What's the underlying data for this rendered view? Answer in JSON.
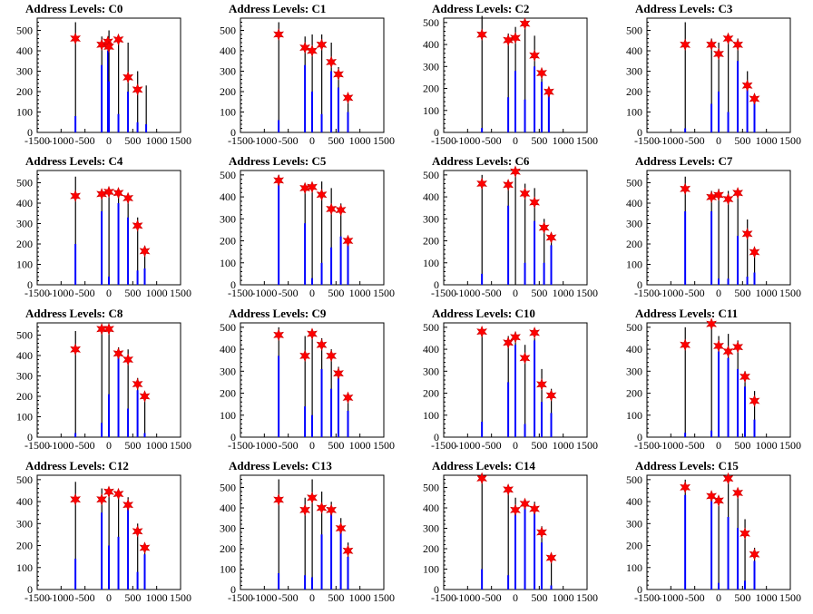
{
  "chart_data": [
    {
      "type": "histogram",
      "title": "Address Levels: C0",
      "xlim": [
        -1500,
        1500
      ],
      "ylim": [
        0,
        560
      ],
      "xticks": [
        "-1500",
        "-1000",
        "-500",
        "0",
        "500",
        "1000",
        "1500"
      ],
      "yticks": [
        "0",
        "100",
        "200",
        "300",
        "400",
        "500"
      ],
      "x": [
        -700,
        -150,
        -20,
        0,
        200,
        400,
        600,
        780
      ],
      "black": [
        540,
        470,
        470,
        500,
        440,
        440,
        300,
        230
      ],
      "blue": [
        80,
        330,
        400,
        250,
        90,
        200,
        50,
        40
      ],
      "markers": [
        460,
        430,
        445,
        420,
        455,
        270,
        210,
        0
      ]
    },
    {
      "type": "histogram",
      "title": "Address Levels: C1",
      "xlim": [
        -1500,
        1500
      ],
      "ylim": [
        0,
        560
      ],
      "xticks": [
        "-1500",
        "-1000",
        "-500",
        "0",
        "500",
        "1000",
        "1500"
      ],
      "yticks": [
        "0",
        "100",
        "200",
        "300",
        "400",
        "500"
      ],
      "x": [
        -700,
        -150,
        0,
        200,
        400,
        550,
        750
      ],
      "black": [
        540,
        470,
        480,
        480,
        440,
        320,
        150
      ],
      "blue": [
        60,
        330,
        200,
        90,
        300,
        220,
        100
      ],
      "markers": [
        480,
        415,
        400,
        430,
        345,
        285,
        170
      ]
    },
    {
      "type": "histogram",
      "title": "Address Levels: C2",
      "xlim": [
        -1500,
        1500
      ],
      "ylim": [
        0,
        520
      ],
      "xticks": [
        "-1500",
        "-1000",
        "-500",
        "0",
        "500",
        "1000",
        "1500"
      ],
      "yticks": [
        "0",
        "100",
        "200",
        "300",
        "400",
        "500"
      ],
      "x": [
        -700,
        -150,
        0,
        200,
        400,
        550,
        700
      ],
      "black": [
        530,
        450,
        480,
        490,
        440,
        290,
        200
      ],
      "blue": [
        20,
        160,
        280,
        150,
        300,
        230,
        170
      ],
      "markers": [
        445,
        420,
        430,
        495,
        350,
        270,
        185
      ]
    },
    {
      "type": "histogram",
      "title": "Address Levels: C3",
      "xlim": [
        -1500,
        1500
      ],
      "ylim": [
        0,
        560
      ],
      "xticks": [
        "-1500",
        "-1000",
        "-500",
        "0",
        "500",
        "1000",
        "1500"
      ],
      "yticks": [
        "0",
        "100",
        "200",
        "300",
        "400",
        "500"
      ],
      "x": [
        -700,
        -150,
        0,
        200,
        400,
        600,
        750
      ],
      "black": [
        540,
        460,
        440,
        480,
        460,
        300,
        180
      ],
      "blue": [
        20,
        140,
        200,
        100,
        350,
        210,
        160
      ],
      "markers": [
        430,
        430,
        385,
        460,
        430,
        230,
        165
      ]
    },
    {
      "type": "histogram",
      "title": "Address Levels: C4",
      "xlim": [
        -1500,
        1500
      ],
      "ylim": [
        0,
        560
      ],
      "xticks": [
        "-1500",
        "-1000",
        "-500",
        "0",
        "500",
        "1000",
        "1500"
      ],
      "yticks": [
        "0",
        "100",
        "200",
        "300",
        "400",
        "500"
      ],
      "x": [
        -700,
        -150,
        0,
        200,
        400,
        600,
        750
      ],
      "black": [
        530,
        460,
        470,
        460,
        440,
        330,
        190
      ],
      "blue": [
        200,
        360,
        40,
        400,
        330,
        70,
        80
      ],
      "markers": [
        435,
        445,
        455,
        450,
        425,
        290,
        165
      ]
    },
    {
      "type": "histogram",
      "title": "Address Levels: C5",
      "xlim": [
        -1500,
        1500
      ],
      "ylim": [
        0,
        520
      ],
      "xticks": [
        "-1500",
        "-1000",
        "-500",
        "0",
        "500",
        "1000",
        "1500"
      ],
      "yticks": [
        "0",
        "100",
        "200",
        "300",
        "400",
        "500"
      ],
      "x": [
        -700,
        -150,
        0,
        200,
        400,
        600,
        750
      ],
      "black": [
        500,
        460,
        460,
        470,
        440,
        370,
        210
      ],
      "blue": [
        460,
        280,
        30,
        100,
        170,
        220,
        190
      ],
      "markers": [
        475,
        440,
        445,
        410,
        345,
        340,
        200
      ]
    },
    {
      "type": "histogram",
      "title": "Address Levels: C6",
      "xlim": [
        -1500,
        1500
      ],
      "ylim": [
        0,
        520
      ],
      "xticks": [
        "-1500",
        "-1000",
        "-500",
        "0",
        "500",
        "1000",
        "1500"
      ],
      "yticks": [
        "0",
        "100",
        "200",
        "300",
        "400",
        "500"
      ],
      "x": [
        -700,
        -150,
        0,
        200,
        400,
        600,
        750
      ],
      "black": [
        500,
        460,
        510,
        460,
        440,
        300,
        200
      ],
      "blue": [
        50,
        360,
        0,
        100,
        290,
        100,
        180
      ],
      "markers": [
        460,
        455,
        515,
        415,
        375,
        260,
        215
      ]
    },
    {
      "type": "histogram",
      "title": "Address Levels: C7",
      "xlim": [
        -1500,
        1500
      ],
      "ylim": [
        0,
        560
      ],
      "xticks": [
        "-1500",
        "-1000",
        "-500",
        "0",
        "500",
        "1000",
        "1500"
      ],
      "yticks": [
        "0",
        "100",
        "200",
        "300",
        "400",
        "500"
      ],
      "x": [
        -700,
        -150,
        0,
        200,
        400,
        600,
        750
      ],
      "black": [
        530,
        460,
        470,
        460,
        460,
        320,
        160
      ],
      "blue": [
        360,
        360,
        30,
        30,
        240,
        40,
        60
      ],
      "markers": [
        470,
        430,
        440,
        420,
        450,
        250,
        160
      ]
    },
    {
      "type": "histogram",
      "title": "Address Levels: C8",
      "xlim": [
        -1500,
        1500
      ],
      "ylim": [
        0,
        560
      ],
      "xticks": [
        "-1500",
        "-1000",
        "-500",
        "0",
        "500",
        "1000",
        "1500"
      ],
      "yticks": [
        "0",
        "100",
        "200",
        "300",
        "400",
        "500"
      ],
      "x": [
        -700,
        -150,
        0,
        200,
        400,
        600,
        750
      ],
      "black": [
        520,
        520,
        530,
        440,
        430,
        290,
        200
      ],
      "blue": [
        20,
        70,
        210,
        400,
        140,
        230,
        20
      ],
      "markers": [
        430,
        530,
        530,
        410,
        380,
        260,
        200
      ]
    },
    {
      "type": "histogram",
      "title": "Address Levels: C9",
      "xlim": [
        -1500,
        1500
      ],
      "ylim": [
        0,
        520
      ],
      "xticks": [
        "-1500",
        "-1000",
        "-500",
        "0",
        "500",
        "1000",
        "1500"
      ],
      "yticks": [
        "0",
        "100",
        "200",
        "300",
        "400",
        "500"
      ],
      "x": [
        -700,
        -150,
        0,
        200,
        400,
        550,
        750
      ],
      "black": [
        500,
        460,
        490,
        450,
        400,
        320,
        180
      ],
      "blue": [
        370,
        140,
        100,
        310,
        220,
        270,
        120
      ],
      "markers": [
        465,
        370,
        470,
        420,
        370,
        290,
        180
      ]
    },
    {
      "type": "histogram",
      "title": "Address Levels: C10",
      "xlim": [
        -1500,
        1500
      ],
      "ylim": [
        0,
        520
      ],
      "xticks": [
        "-1500",
        "-1000",
        "-500",
        "0",
        "500",
        "1000",
        "1500"
      ],
      "yticks": [
        "0",
        "100",
        "200",
        "300",
        "400",
        "500"
      ],
      "x": [
        -700,
        -150,
        0,
        200,
        400,
        550,
        750
      ],
      "black": [
        500,
        460,
        480,
        420,
        450,
        310,
        220
      ],
      "blue": [
        70,
        250,
        420,
        60,
        440,
        160,
        110
      ],
      "markers": [
        480,
        430,
        455,
        360,
        475,
        240,
        190
      ]
    },
    {
      "type": "histogram",
      "title": "Address Levels: C11",
      "xlim": [
        -1500,
        1500
      ],
      "ylim": [
        0,
        520
      ],
      "xticks": [
        "-1500",
        "-1000",
        "-500",
        "0",
        "500",
        "1000",
        "1500"
      ],
      "yticks": [
        "0",
        "100",
        "200",
        "300",
        "400",
        "500"
      ],
      "x": [
        -700,
        -150,
        0,
        200,
        400,
        550,
        750
      ],
      "black": [
        500,
        500,
        460,
        470,
        440,
        300,
        210
      ],
      "blue": [
        20,
        30,
        390,
        360,
        310,
        230,
        80
      ],
      "markers": [
        420,
        515,
        415,
        390,
        410,
        275,
        165
      ]
    },
    {
      "type": "histogram",
      "title": "Address Levels: C12",
      "xlim": [
        -1500,
        1500
      ],
      "ylim": [
        0,
        520
      ],
      "xticks": [
        "-1500",
        "-1000",
        "-500",
        "0",
        "500",
        "1000",
        "1500"
      ],
      "yticks": [
        "0",
        "100",
        "200",
        "300",
        "400",
        "500"
      ],
      "x": [
        -700,
        -150,
        0,
        200,
        400,
        600,
        750
      ],
      "black": [
        490,
        460,
        460,
        450,
        420,
        300,
        200
      ],
      "blue": [
        140,
        350,
        200,
        240,
        380,
        80,
        160
      ],
      "markers": [
        410,
        410,
        445,
        435,
        385,
        265,
        190
      ]
    },
    {
      "type": "histogram",
      "title": "Address Levels: C13",
      "xlim": [
        -1500,
        1500
      ],
      "ylim": [
        0,
        560
      ],
      "xticks": [
        "-1500",
        "-1000",
        "-500",
        "0",
        "500",
        "1000",
        "1500"
      ],
      "yticks": [
        "0",
        "100",
        "200",
        "300",
        "400",
        "500"
      ],
      "x": [
        -700,
        -150,
        0,
        200,
        400,
        600,
        750
      ],
      "black": [
        540,
        450,
        540,
        480,
        430,
        350,
        230
      ],
      "blue": [
        80,
        70,
        60,
        270,
        380,
        290,
        160
      ],
      "markers": [
        440,
        390,
        450,
        400,
        390,
        300,
        190
      ]
    },
    {
      "type": "histogram",
      "title": "Address Levels: C14",
      "xlim": [
        -1500,
        1500
      ],
      "ylim": [
        0,
        560
      ],
      "xticks": [
        "-1500",
        "-1000",
        "-500",
        "0",
        "500",
        "1000",
        "1500"
      ],
      "yticks": [
        "0",
        "100",
        "200",
        "300",
        "400",
        "500"
      ],
      "x": [
        -700,
        -150,
        0,
        200,
        400,
        550,
        750
      ],
      "black": [
        560,
        470,
        450,
        440,
        430,
        310,
        160
      ],
      "blue": [
        100,
        70,
        370,
        430,
        380,
        230,
        20
      ],
      "markers": [
        545,
        490,
        390,
        420,
        395,
        280,
        155
      ]
    },
    {
      "type": "histogram",
      "title": "Address Levels: C15",
      "xlim": [
        -1500,
        1500
      ],
      "ylim": [
        0,
        520
      ],
      "xticks": [
        "-1500",
        "-1000",
        "-500",
        "0",
        "500",
        "1000",
        "1500"
      ],
      "yticks": [
        "0",
        "100",
        "200",
        "300",
        "400",
        "500"
      ],
      "x": [
        -700,
        -150,
        0,
        200,
        400,
        550,
        750
      ],
      "black": [
        500,
        440,
        420,
        500,
        440,
        320,
        190
      ],
      "blue": [
        430,
        410,
        30,
        330,
        280,
        40,
        130
      ],
      "markers": [
        465,
        425,
        405,
        505,
        440,
        255,
        160
      ]
    }
  ],
  "colors": {
    "marker": "#ff0000",
    "marker_edge": "#cc0000",
    "blue_bar": "#0000ff",
    "black_bar": "#000000"
  }
}
